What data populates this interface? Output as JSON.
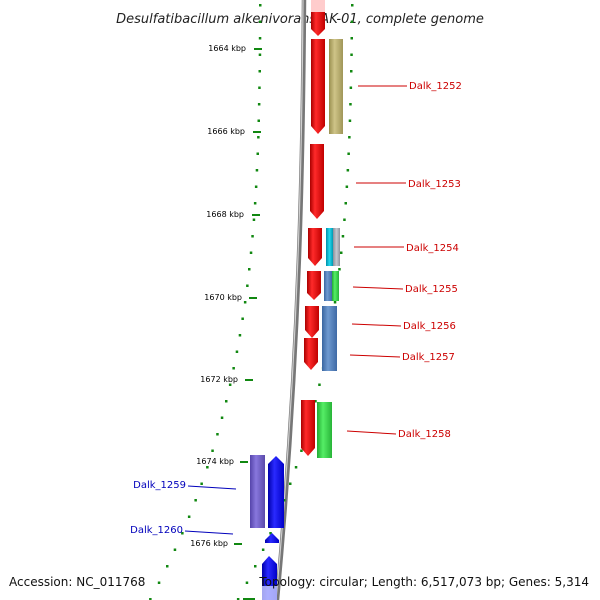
{
  "title": "Desulfatibacillum alkenivorans AK-01, complete genome",
  "footer": {
    "accession": "Accession: NC_011768",
    "summary": "Topology: circular; Length: 6,517,073 bp; Genes: 5,314"
  },
  "scale_labels": [
    "1664 kbp",
    "1666 kbp",
    "1668 kbp",
    "1670 kbp",
    "1672 kbp",
    "1674 kbp",
    "1676 kbp"
  ],
  "genes": [
    {
      "id": "Dalk_1252",
      "strand": "forward",
      "color": "#cc0000"
    },
    {
      "id": "Dalk_1253",
      "strand": "forward",
      "color": "#cc0000"
    },
    {
      "id": "Dalk_1254",
      "strand": "forward",
      "color": "#cc0000"
    },
    {
      "id": "Dalk_1255",
      "strand": "forward",
      "color": "#cc0000"
    },
    {
      "id": "Dalk_1256",
      "strand": "forward",
      "color": "#cc0000"
    },
    {
      "id": "Dalk_1257",
      "strand": "forward",
      "color": "#cc0000"
    },
    {
      "id": "Dalk_1258",
      "strand": "forward",
      "color": "#cc0000"
    },
    {
      "id": "Dalk_1259",
      "strand": "reverse",
      "color": "#0000bb"
    },
    {
      "id": "Dalk_1260",
      "strand": "reverse",
      "color": "#0000bb"
    }
  ],
  "colors": {
    "forward_gene": "#ff0000",
    "reverse_gene": "#0000ff",
    "tick": "#118811",
    "backbone": "#888888"
  }
}
